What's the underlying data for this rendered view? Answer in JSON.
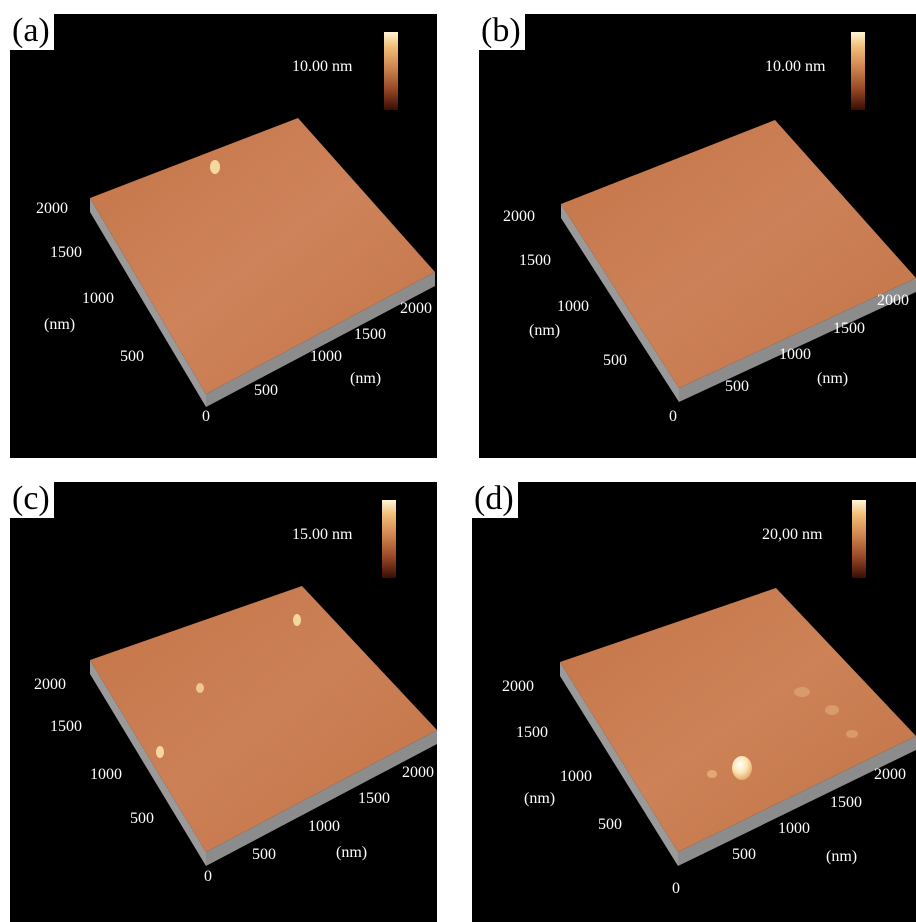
{
  "panels": [
    {
      "label": "(a)",
      "scale": "10.00 nm",
      "y_ticks": [
        "2000",
        "1500",
        "1000",
        "500"
      ],
      "y_unit": "(nm)",
      "x_ticks": [
        "500",
        "1000",
        "1500",
        "2000"
      ],
      "x_unit": "(nm)",
      "origin": "0"
    },
    {
      "label": "(b)",
      "scale": "10.00 nm",
      "y_ticks": [
        "2000",
        "1500",
        "1000",
        "500"
      ],
      "y_unit": "(nm)",
      "x_ticks": [
        "500",
        "1000",
        "1500",
        "2000"
      ],
      "x_unit": "(nm)",
      "origin": "0"
    },
    {
      "label": "(c)",
      "scale": "15.00 nm",
      "y_ticks": [
        "2000",
        "1500",
        "1000",
        "500"
      ],
      "x_ticks": [
        "500",
        "1000",
        "1500",
        "2000"
      ],
      "x_unit": "(nm)",
      "origin": "0"
    },
    {
      "label": "(d)",
      "scale": "20,00 nm",
      "y_ticks": [
        "2000",
        "1500",
        "1000"
      ],
      "y_unit": "(nm)",
      "y_tick_last": "500",
      "x_ticks": [
        "500",
        "1000",
        "1500",
        "2000"
      ],
      "x_unit": "(nm)",
      "origin": "0"
    }
  ],
  "colors": {
    "surface": "#c87a4e",
    "surface_light": "#d89468",
    "edge": "#9a9a9a",
    "background": "#000000"
  }
}
